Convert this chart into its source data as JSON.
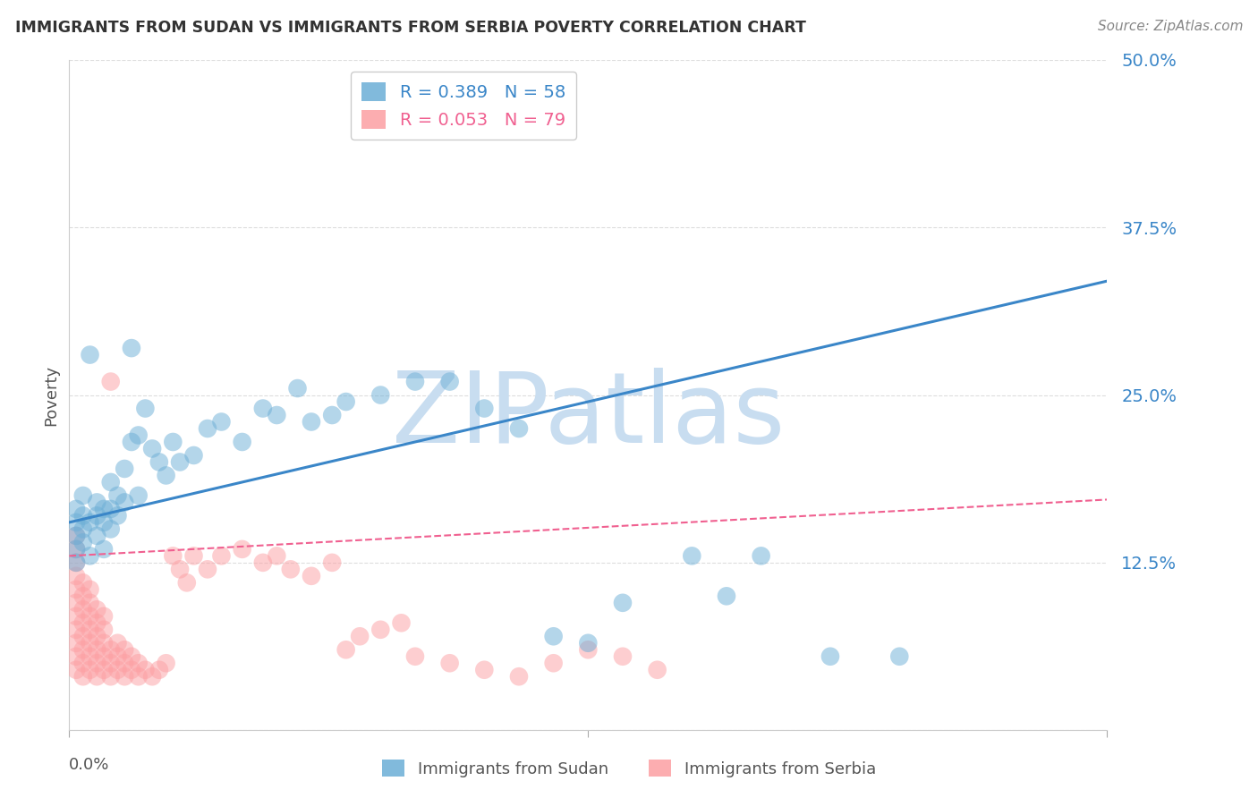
{
  "title": "IMMIGRANTS FROM SUDAN VS IMMIGRANTS FROM SERBIA POVERTY CORRELATION CHART",
  "source": "Source: ZipAtlas.com",
  "ylabel": "Poverty",
  "yticks": [
    0.0,
    0.125,
    0.25,
    0.375,
    0.5
  ],
  "ytick_labels": [
    "",
    "12.5%",
    "25.0%",
    "37.5%",
    "50.0%"
  ],
  "xlim": [
    0.0,
    0.15
  ],
  "ylim": [
    0.0,
    0.5
  ],
  "sudan_R": 0.389,
  "sudan_N": 58,
  "serbia_R": 0.053,
  "serbia_N": 79,
  "sudan_color": "#6baed6",
  "serbia_color": "#fc9fa3",
  "sudan_line_color": "#3a86c8",
  "serbia_line_color": "#f06090",
  "watermark": "ZIPatlas",
  "watermark_color": "#c8ddf0",
  "axis_label_color": "#3a86c8",
  "background_color": "#ffffff",
  "grid_color": "#dddddd",
  "sudan_points_x": [
    0.001,
    0.001,
    0.001,
    0.001,
    0.001,
    0.002,
    0.002,
    0.002,
    0.002,
    0.003,
    0.003,
    0.003,
    0.004,
    0.004,
    0.004,
    0.005,
    0.005,
    0.005,
    0.006,
    0.006,
    0.006,
    0.007,
    0.007,
    0.008,
    0.008,
    0.009,
    0.009,
    0.01,
    0.01,
    0.011,
    0.012,
    0.013,
    0.014,
    0.015,
    0.016,
    0.018,
    0.02,
    0.022,
    0.025,
    0.028,
    0.03,
    0.033,
    0.035,
    0.038,
    0.04,
    0.045,
    0.05,
    0.055,
    0.06,
    0.065,
    0.07,
    0.075,
    0.08,
    0.09,
    0.095,
    0.1,
    0.11,
    0.12
  ],
  "sudan_points_y": [
    0.155,
    0.145,
    0.135,
    0.165,
    0.125,
    0.16,
    0.15,
    0.14,
    0.175,
    0.155,
    0.28,
    0.13,
    0.17,
    0.16,
    0.145,
    0.165,
    0.155,
    0.135,
    0.185,
    0.165,
    0.15,
    0.175,
    0.16,
    0.195,
    0.17,
    0.285,
    0.215,
    0.22,
    0.175,
    0.24,
    0.21,
    0.2,
    0.19,
    0.215,
    0.2,
    0.205,
    0.225,
    0.23,
    0.215,
    0.24,
    0.235,
    0.255,
    0.23,
    0.235,
    0.245,
    0.25,
    0.26,
    0.26,
    0.24,
    0.225,
    0.07,
    0.065,
    0.095,
    0.13,
    0.1,
    0.13,
    0.055,
    0.055
  ],
  "serbia_points_x": [
    0.001,
    0.001,
    0.001,
    0.001,
    0.001,
    0.001,
    0.001,
    0.001,
    0.001,
    0.001,
    0.001,
    0.002,
    0.002,
    0.002,
    0.002,
    0.002,
    0.002,
    0.002,
    0.002,
    0.003,
    0.003,
    0.003,
    0.003,
    0.003,
    0.003,
    0.003,
    0.004,
    0.004,
    0.004,
    0.004,
    0.004,
    0.004,
    0.005,
    0.005,
    0.005,
    0.005,
    0.005,
    0.006,
    0.006,
    0.006,
    0.006,
    0.007,
    0.007,
    0.007,
    0.008,
    0.008,
    0.008,
    0.009,
    0.009,
    0.01,
    0.01,
    0.011,
    0.012,
    0.013,
    0.014,
    0.015,
    0.016,
    0.017,
    0.018,
    0.02,
    0.022,
    0.025,
    0.028,
    0.03,
    0.032,
    0.035,
    0.038,
    0.04,
    0.042,
    0.045,
    0.048,
    0.05,
    0.055,
    0.06,
    0.065,
    0.07,
    0.075,
    0.08,
    0.085
  ],
  "serbia_points_y": [
    0.045,
    0.055,
    0.065,
    0.075,
    0.085,
    0.095,
    0.105,
    0.115,
    0.125,
    0.135,
    0.145,
    0.04,
    0.05,
    0.06,
    0.07,
    0.08,
    0.09,
    0.1,
    0.11,
    0.045,
    0.055,
    0.065,
    0.075,
    0.085,
    0.095,
    0.105,
    0.04,
    0.05,
    0.06,
    0.07,
    0.08,
    0.09,
    0.045,
    0.055,
    0.065,
    0.075,
    0.085,
    0.04,
    0.05,
    0.06,
    0.26,
    0.045,
    0.055,
    0.065,
    0.04,
    0.05,
    0.06,
    0.045,
    0.055,
    0.04,
    0.05,
    0.045,
    0.04,
    0.045,
    0.05,
    0.13,
    0.12,
    0.11,
    0.13,
    0.12,
    0.13,
    0.135,
    0.125,
    0.13,
    0.12,
    0.115,
    0.125,
    0.06,
    0.07,
    0.075,
    0.08,
    0.055,
    0.05,
    0.045,
    0.04,
    0.05,
    0.06,
    0.055,
    0.045
  ]
}
